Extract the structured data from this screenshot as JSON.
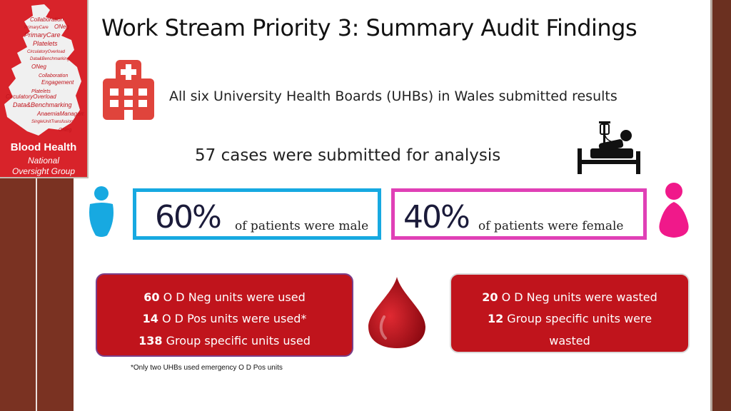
{
  "slide": {
    "title": "Work Stream Priority 3: Summary Audit Findings"
  },
  "logo": {
    "title": "Blood Health",
    "subtitle_line1": "National",
    "subtitle_line2": "Oversight Group",
    "word_cloud": [
      "Collaboration",
      "ONeg",
      "PrimaryCare",
      "Platelets",
      "CirculatoryOverload",
      "Data&Benchmarking",
      "AnaemiaManagement",
      "Engagement",
      "SingleUnitTransfusion"
    ],
    "colors": {
      "background": "#d8232a",
      "map": "#f0f0f0"
    }
  },
  "findings": {
    "uhb_statement": "All six University Health Boards (UHBs) in Wales submitted results",
    "cases_statement": "57 cases were submitted for analysis"
  },
  "gender_split": {
    "male": {
      "percent": "60%",
      "label": "of patients were male",
      "color": "#17a9e1"
    },
    "female": {
      "percent": "40%",
      "label": "of patients were female",
      "color": "#e040b6"
    }
  },
  "units_used": {
    "line1": {
      "value": "60",
      "text": "O D Neg units were used"
    },
    "line2": {
      "value": "14",
      "text": "O D Pos units were used*"
    },
    "line3": {
      "value": "138",
      "text": "Group specific units used"
    }
  },
  "units_wasted": {
    "line1": {
      "value": "20",
      "text": "O D Neg units were wasted"
    },
    "line2": {
      "value": "12",
      "text": "Group specific units were"
    },
    "line3": {
      "text": "wasted"
    }
  },
  "footnote": "*Only two UHBs used emergency O D Pos units",
  "icons": {
    "hospital": "hospital-icon",
    "bed": "hospital-bed-icon",
    "male": "male-person-icon",
    "female": "female-person-icon",
    "blood_drop": "blood-drop-icon"
  },
  "colors": {
    "panel_red": "#c0141c",
    "side_brown": "#7a3222",
    "hospital_red": "#e0443c",
    "drop_red": "#b0101a"
  }
}
